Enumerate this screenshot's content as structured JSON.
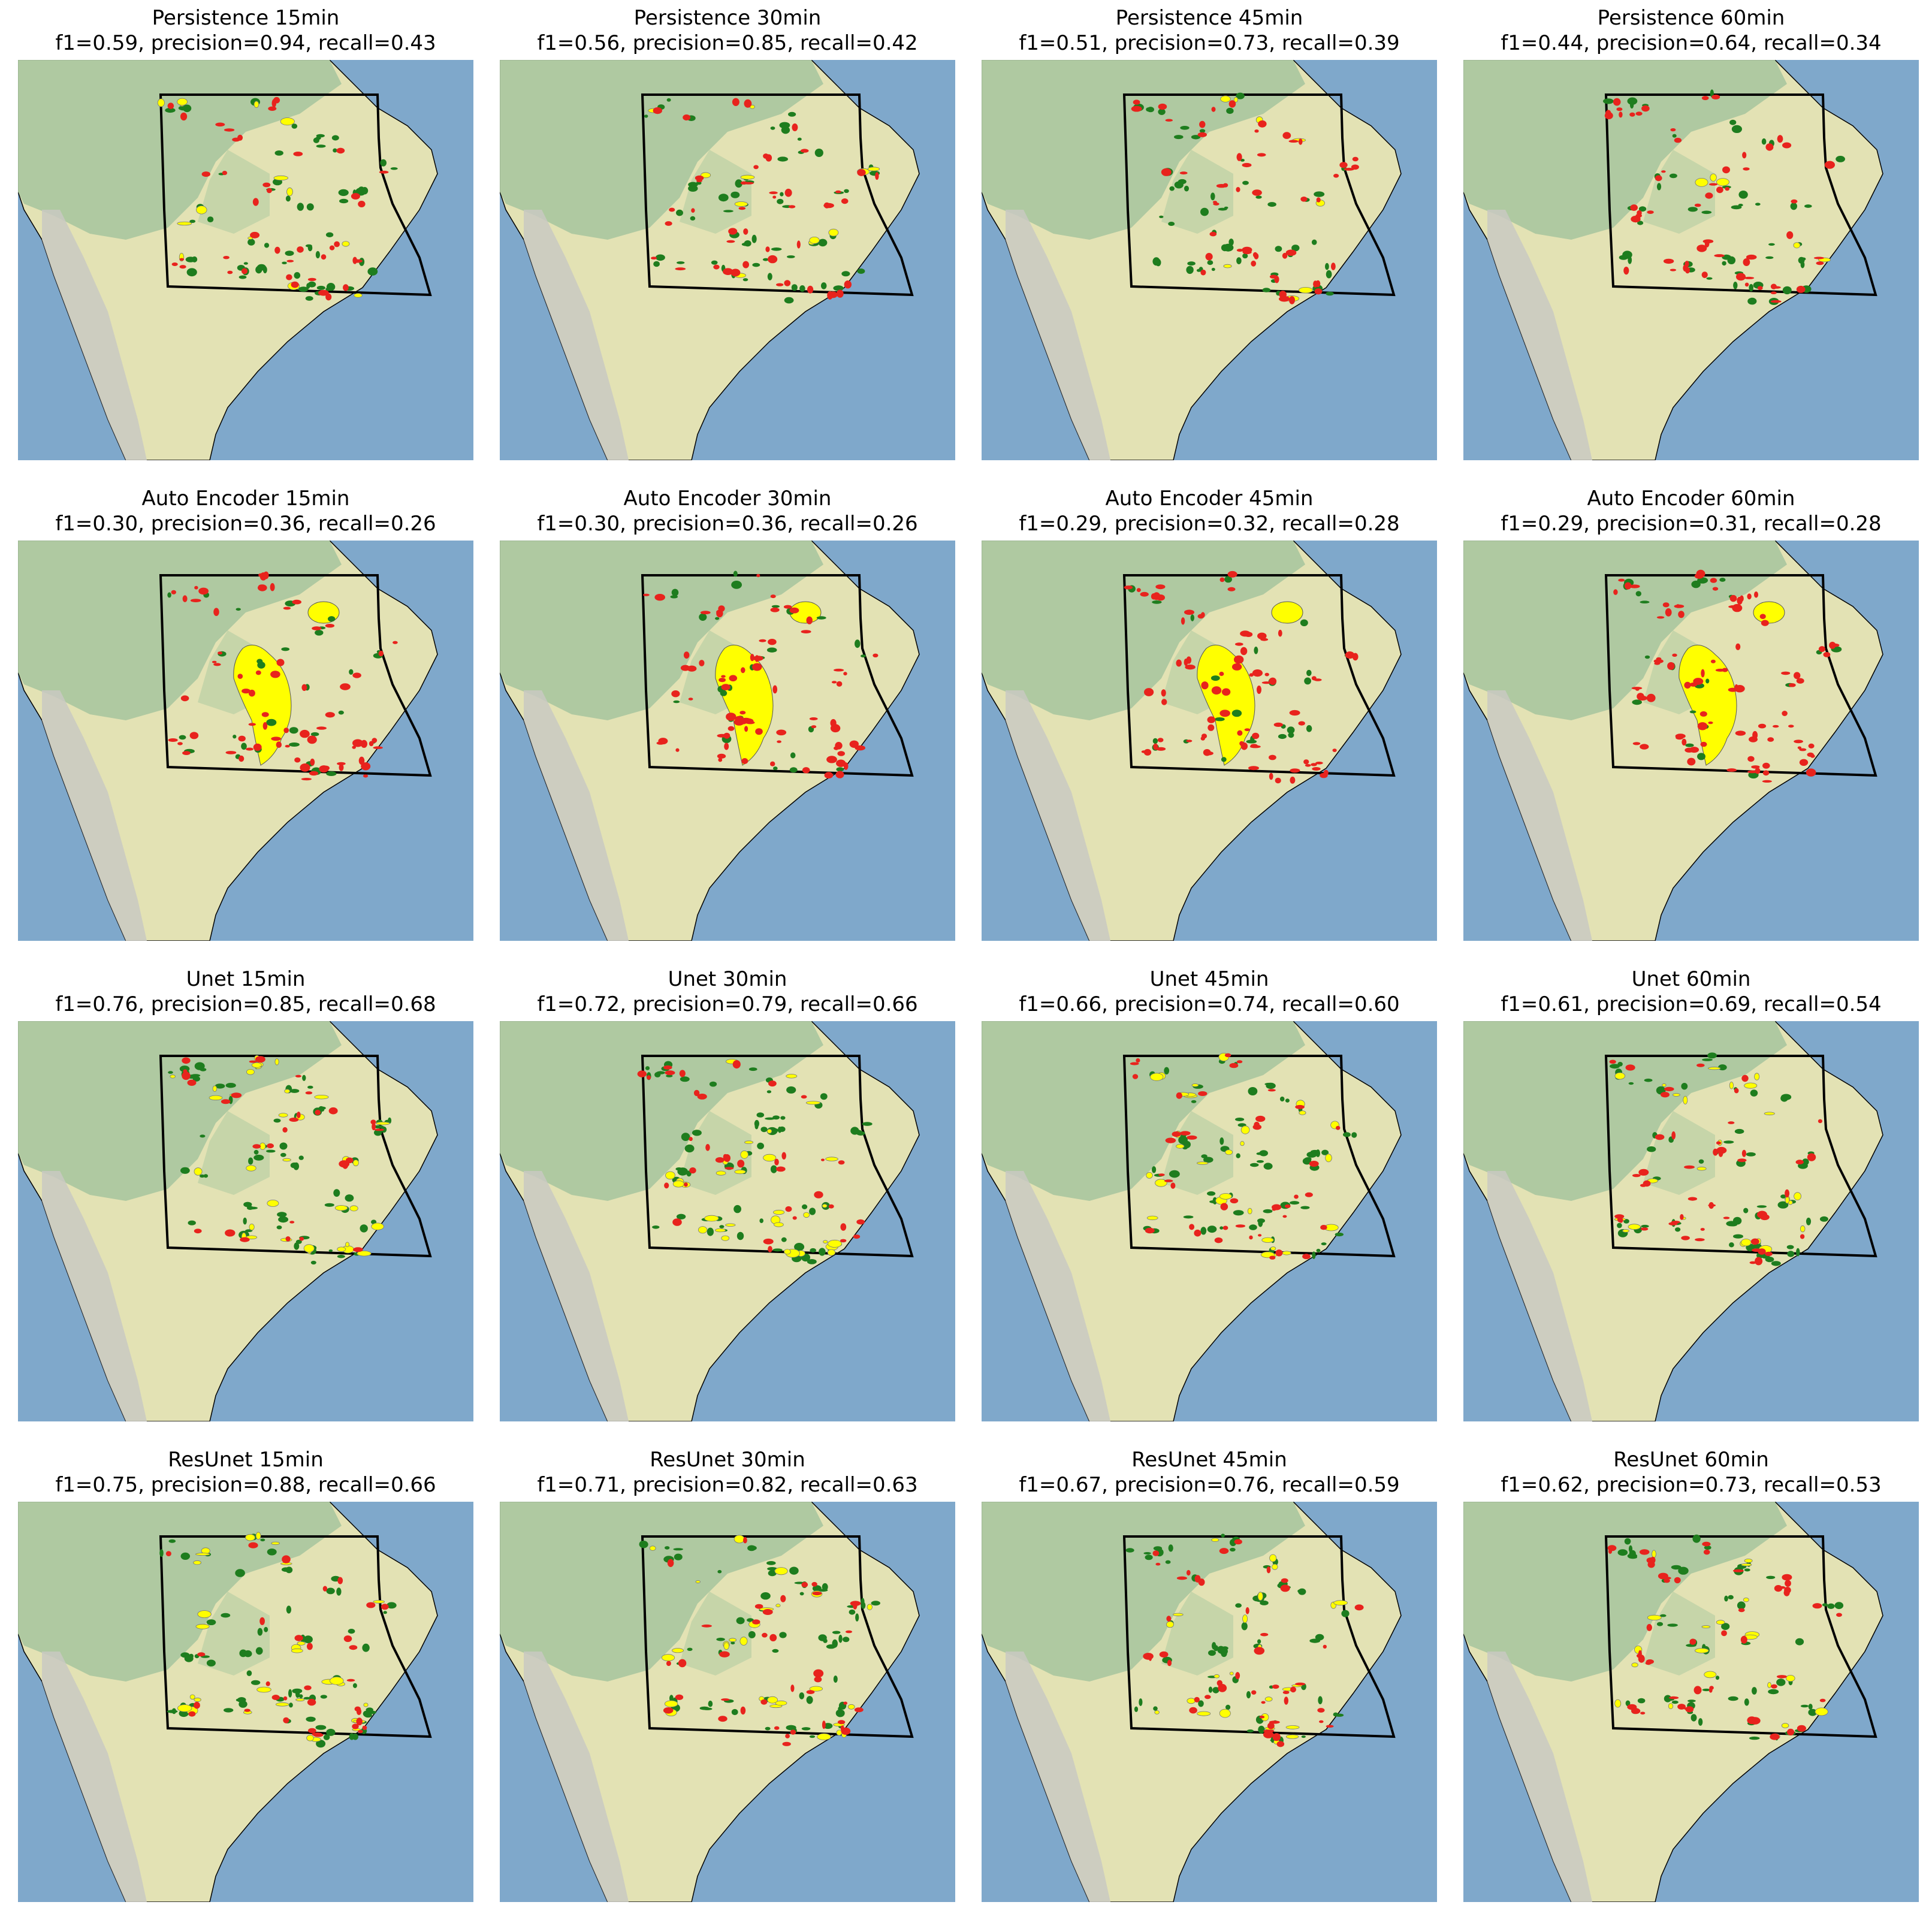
{
  "figure": {
    "rows": [
      {
        "model": "Persistence",
        "panels": [
          {
            "title": "Persistence 15min",
            "metrics": "f1=0.59, precision=0.94, recall=0.43"
          },
          {
            "title": "Persistence 30min",
            "metrics": "f1=0.56, precision=0.85, recall=0.42"
          },
          {
            "title": "Persistence 45min",
            "metrics": "f1=0.51, precision=0.73, recall=0.39"
          },
          {
            "title": "Persistence 60min",
            "metrics": "f1=0.44, precision=0.64, recall=0.34"
          }
        ]
      },
      {
        "model": "Auto Encoder",
        "panels": [
          {
            "title": "Auto Encoder 15min",
            "metrics": "f1=0.30, precision=0.36, recall=0.26"
          },
          {
            "title": "Auto Encoder 30min",
            "metrics": "f1=0.30, precision=0.36, recall=0.26"
          },
          {
            "title": "Auto Encoder 45min",
            "metrics": "f1=0.29, precision=0.32, recall=0.28"
          },
          {
            "title": "Auto Encoder 60min",
            "metrics": "f1=0.29, precision=0.31, recall=0.28"
          }
        ]
      },
      {
        "model": "Unet",
        "panels": [
          {
            "title": "Unet 15min",
            "metrics": "f1=0.76, precision=0.85, recall=0.68"
          },
          {
            "title": "Unet 30min",
            "metrics": "f1=0.72, precision=0.79, recall=0.66"
          },
          {
            "title": "Unet 45min",
            "metrics": "f1=0.66, precision=0.74, recall=0.60"
          },
          {
            "title": "Unet 60min",
            "metrics": "f1=0.61, precision=0.69, recall=0.54"
          }
        ]
      },
      {
        "model": "ResUnet",
        "panels": [
          {
            "title": "ResUnet 15min",
            "metrics": "f1=0.75, precision=0.88, recall=0.66"
          },
          {
            "title": "ResUnet 30min",
            "metrics": "f1=0.71, precision=0.82, recall=0.63"
          },
          {
            "title": "ResUnet 45min",
            "metrics": "f1=0.67, precision=0.76, recall=0.59"
          },
          {
            "title": "ResUnet 60min",
            "metrics": "f1=0.62, precision=0.73, recall=0.53"
          }
        ]
      }
    ]
  },
  "colors": {
    "ocean": "#7fa8cb",
    "land_tropics": "#a9c79e",
    "land_dry": "#e3e2b4",
    "andes": "#c9c9c2",
    "region_outline": "#000000",
    "true_positive": "#1e7d1e",
    "false_positive": "#ffff00",
    "false_negative": "#e8231d"
  }
}
